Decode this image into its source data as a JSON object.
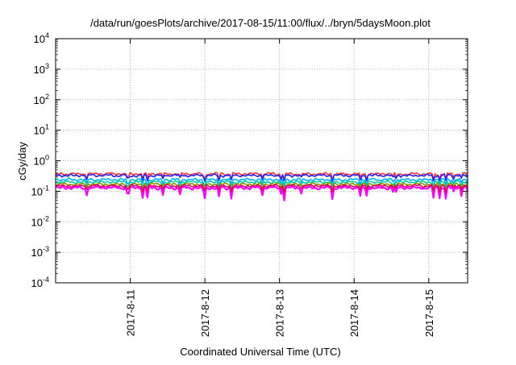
{
  "chart_data": {
    "type": "line",
    "title": "/data/run/goesPlots/archive/2017-08-15/11:00/flux/../bryn/5daysMoon.plot",
    "xlabel": "Coordinated Universal Time (UTC)",
    "ylabel": "cGy/day",
    "yscale": "log",
    "ylim": [
      0.0001,
      10000
    ],
    "y_ticks": [
      {
        "value": 0.0001,
        "base": "10",
        "exp": "-4"
      },
      {
        "value": 0.001,
        "base": "10",
        "exp": "-3"
      },
      {
        "value": 0.01,
        "base": "10",
        "exp": "-2"
      },
      {
        "value": 0.1,
        "base": "10",
        "exp": "-1"
      },
      {
        "value": 1,
        "base": "10",
        "exp": "0"
      },
      {
        "value": 10,
        "base": "10",
        "exp": "1"
      },
      {
        "value": 100,
        "base": "10",
        "exp": "2"
      },
      {
        "value": 1000,
        "base": "10",
        "exp": "3"
      },
      {
        "value": 10000,
        "base": "10",
        "exp": "4"
      }
    ],
    "xlim": [
      "2017-08-10 00:00",
      "2017-08-15 12:30"
    ],
    "x_ticks": [
      {
        "value": "2017-08-11 00:00",
        "label": "2017-8-11"
      },
      {
        "value": "2017-08-12 00:00",
        "label": "2017-8-12"
      },
      {
        "value": "2017-08-13 00:00",
        "label": "2017-8-13"
      },
      {
        "value": "2017-08-14 00:00",
        "label": "2017-8-14"
      },
      {
        "value": "2017-08-15 00:00",
        "label": "2017-8-15"
      }
    ],
    "grid": true,
    "series": [
      {
        "color": "#ff00ff",
        "base": 0.13,
        "amp": 0.12,
        "dip": 0.06
      },
      {
        "color": "#ff3030",
        "base": 0.37,
        "amp": 0.1,
        "dip": 0.12
      },
      {
        "color": "#2020ff",
        "base": 0.33,
        "amp": 0.1,
        "dip": 0.1
      },
      {
        "color": "#00b0ff",
        "base": 0.24,
        "amp": 0.1,
        "dip": 0.08
      },
      {
        "color": "#00d0a0",
        "base": 0.2,
        "amp": 0.09,
        "dip": 0.1
      },
      {
        "color": "#909000",
        "base": 0.17,
        "amp": 0.09,
        "dip": 0.1
      },
      {
        "color": "#e00060",
        "base": 0.15,
        "amp": 0.09,
        "dip": 0.1
      }
    ]
  }
}
